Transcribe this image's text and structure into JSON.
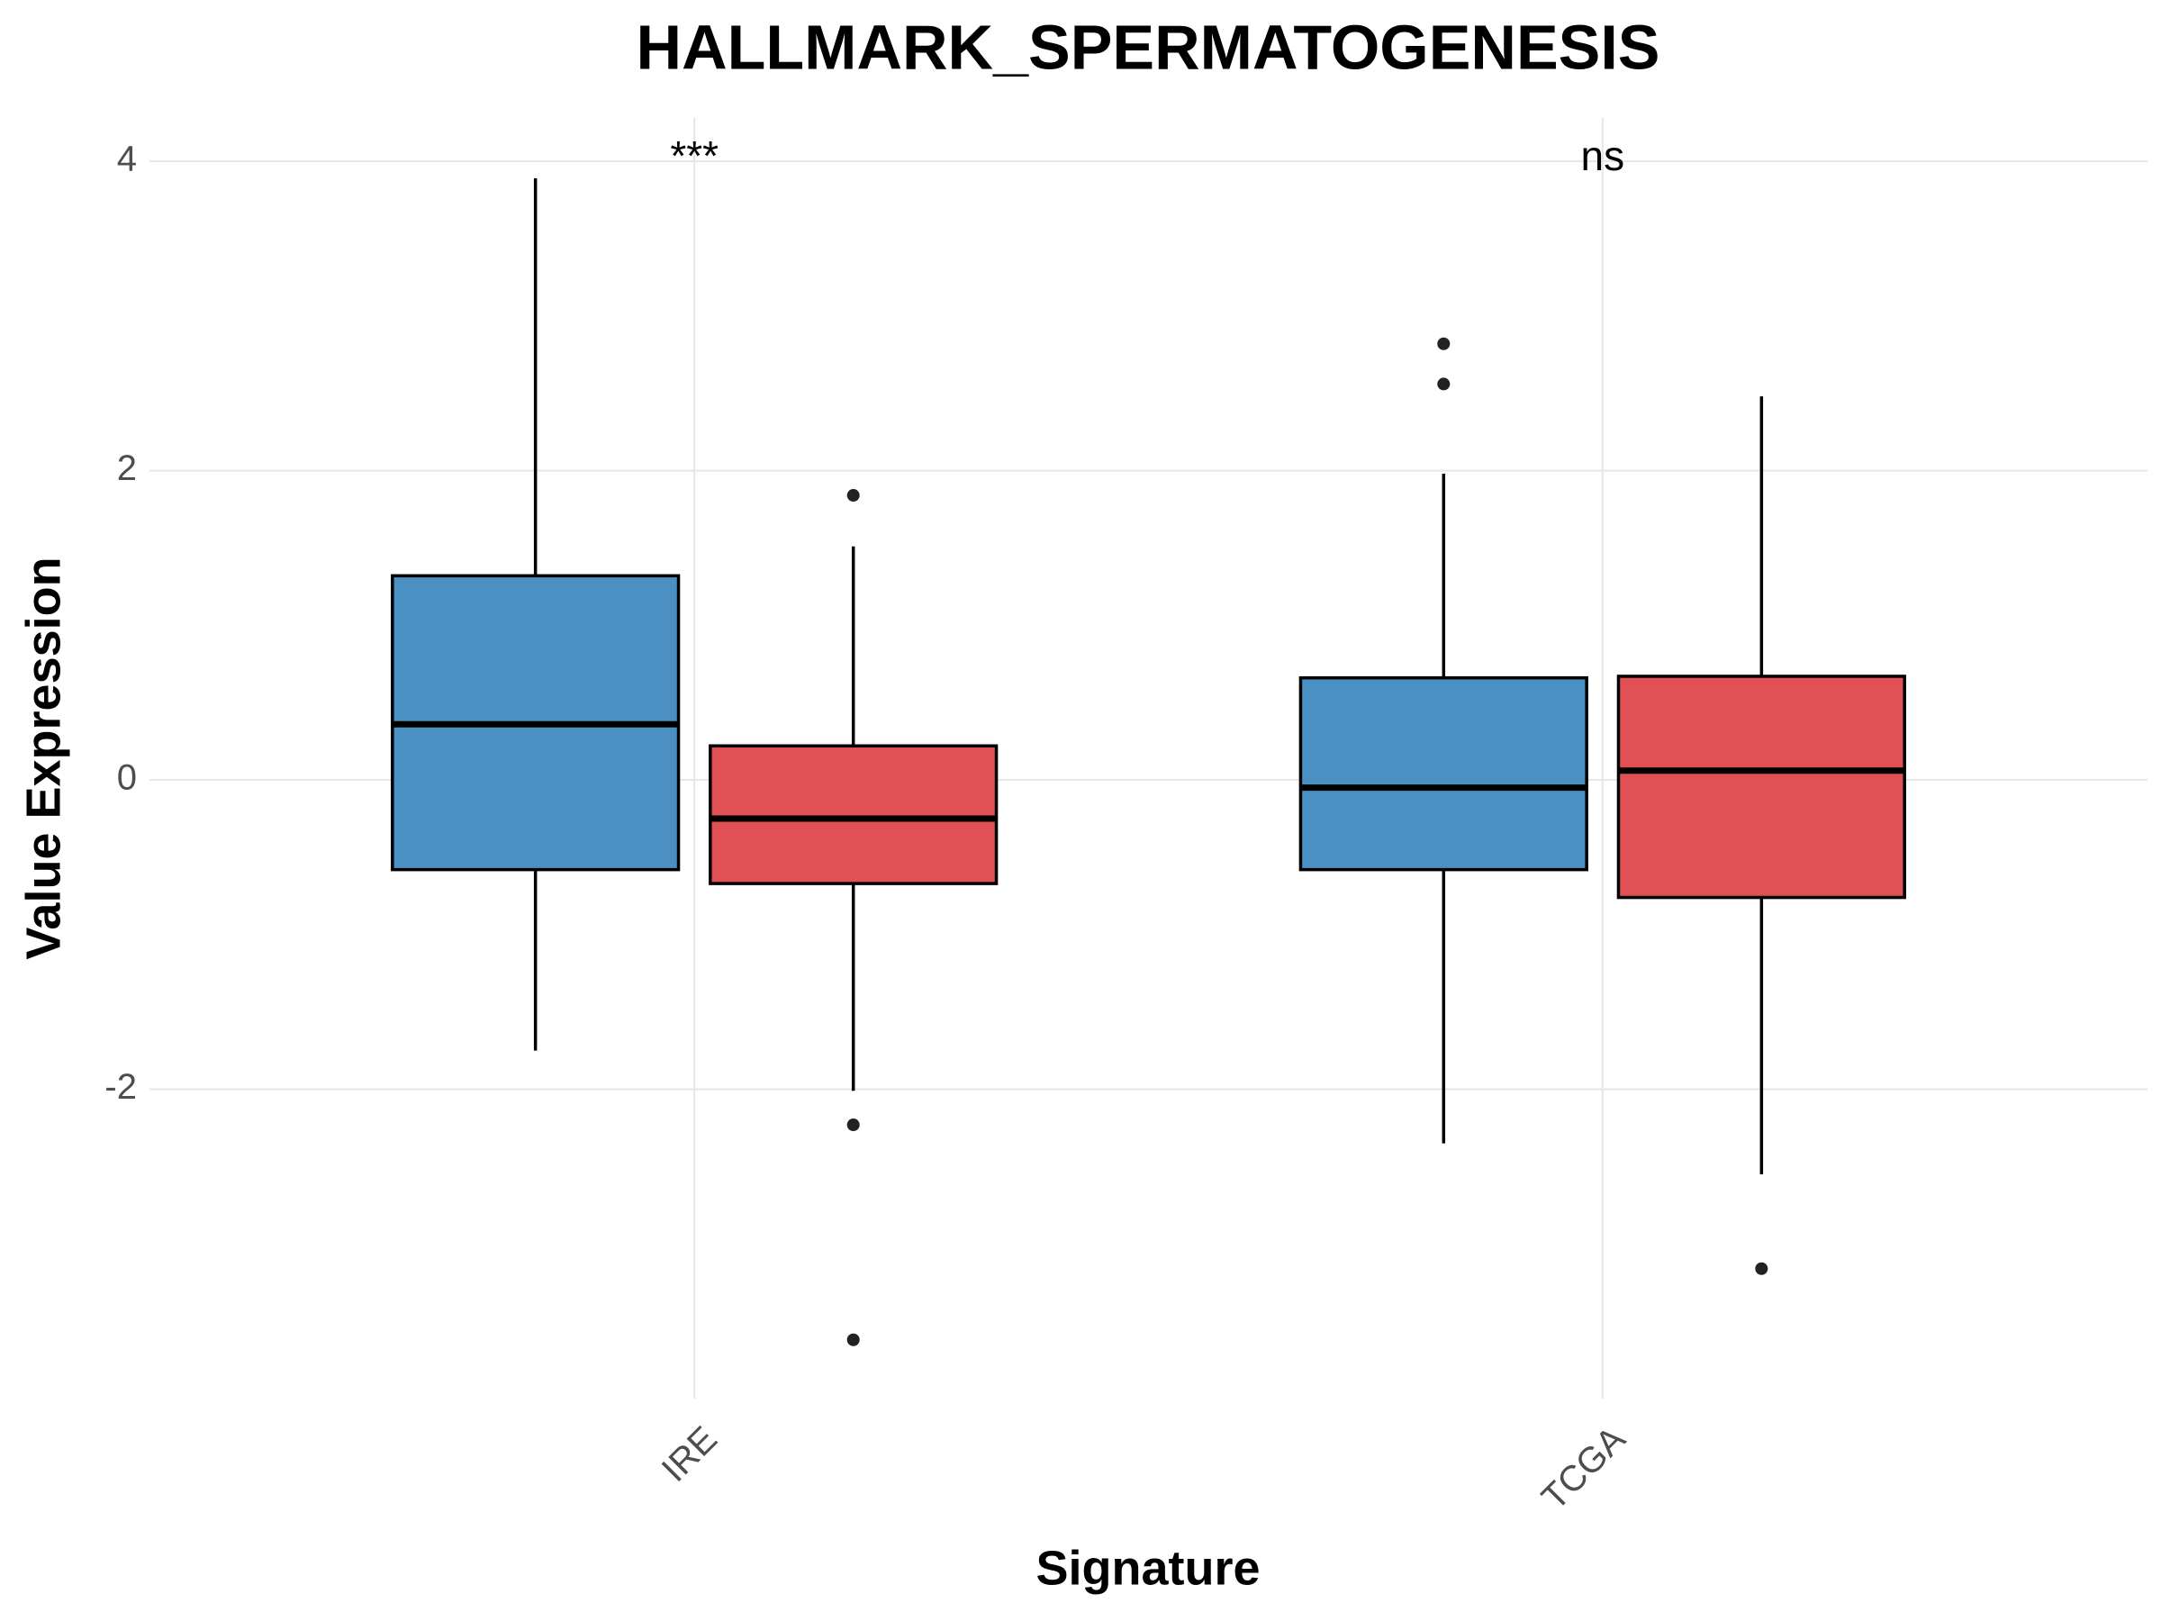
{
  "chart_data": {
    "type": "boxplot",
    "title": "HALLMARK_SPERMATOGENESIS",
    "x_label": "Signature",
    "y_label": "Value Expression",
    "categories": [
      "IRE",
      "TCGA"
    ],
    "annotations": [
      "***",
      "ns"
    ],
    "series": [
      {
        "color": "#4a90c2",
        "values": [
          {
            "min": -1.75,
            "q1": -0.58,
            "median": 0.36,
            "q3": 1.32,
            "max": 3.89,
            "outliers": []
          },
          {
            "min": -2.35,
            "q1": -0.58,
            "median": -0.05,
            "q3": 0.66,
            "max": 1.98,
            "outliers": [
              2.82,
              2.56
            ]
          }
        ]
      },
      {
        "color": "#e05055",
        "values": [
          {
            "min": -2.01,
            "q1": -0.67,
            "median": -0.25,
            "q3": 0.22,
            "max": 1.51,
            "outliers": [
              1.84,
              -2.23,
              -3.62
            ]
          },
          {
            "min": -2.55,
            "q1": -0.76,
            "median": 0.06,
            "q3": 0.67,
            "max": 2.48,
            "outliers": [
              -3.16
            ]
          }
        ]
      }
    ],
    "ylim": [
      -4.0,
      4.28
    ],
    "yticks": [
      -2,
      0,
      2,
      4
    ],
    "grid": true
  }
}
